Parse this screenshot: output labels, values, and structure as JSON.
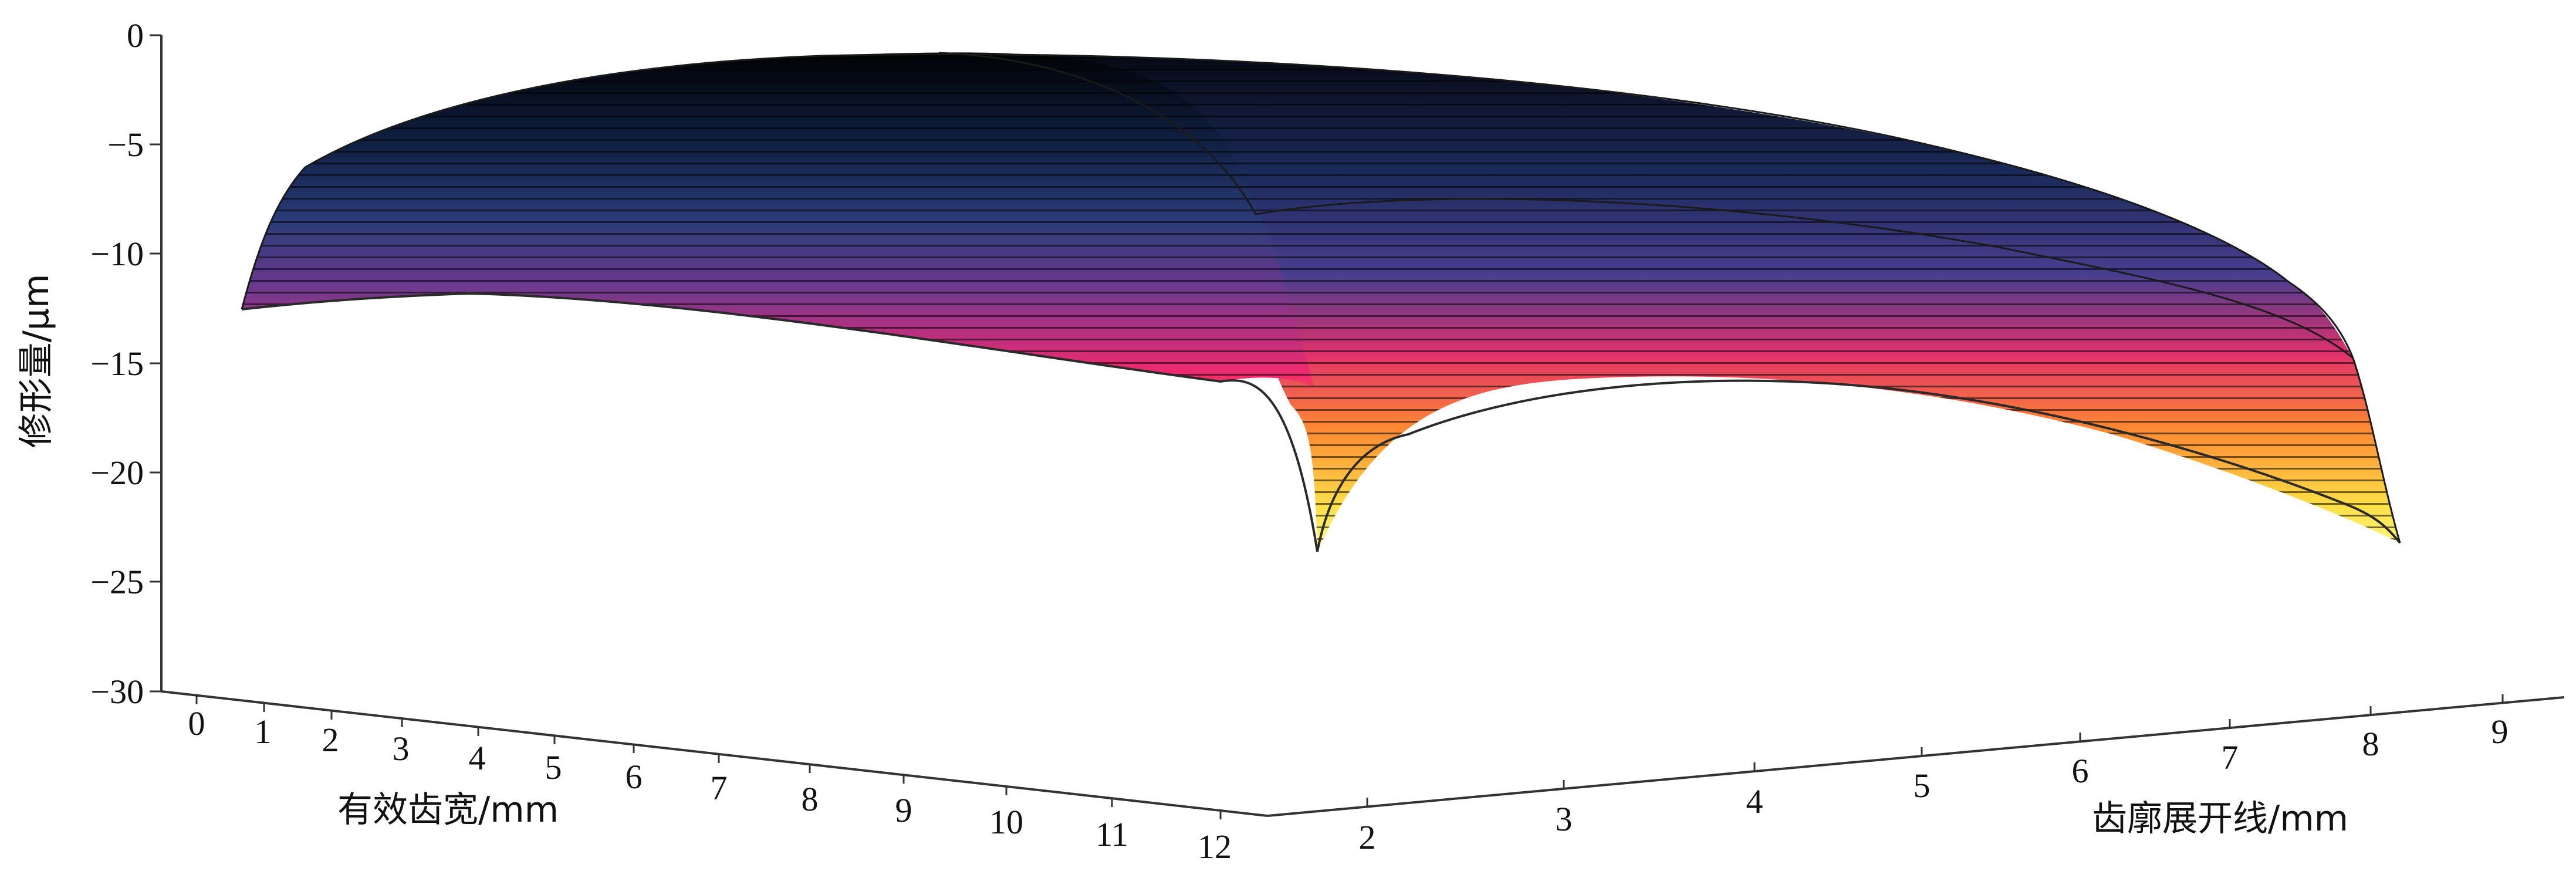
{
  "chart_data": {
    "type": "surface",
    "title": "",
    "zlabel": "修形量/μm",
    "xlabel": "有效齿宽/mm",
    "ylabel": "齿廓展开线/mm",
    "z_ticks": [
      "0",
      "−5",
      "−10",
      "−15",
      "−20",
      "−25",
      "−30"
    ],
    "zlim": [
      -30,
      0
    ],
    "x_ticks": [
      "0",
      "1",
      "2",
      "3",
      "4",
      "5",
      "6",
      "7",
      "8",
      "9",
      "10",
      "11",
      "12"
    ],
    "xlim": [
      0,
      12
    ],
    "y_ticks": [
      "2",
      "3",
      "4",
      "5",
      "6",
      "7",
      "8",
      "9"
    ],
    "ylim": [
      2,
      9
    ],
    "colormap": [
      "#000000",
      "#1a2a5a",
      "#3b3f8a",
      "#8a2f8a",
      "#e02a7a",
      "#ff6a3a",
      "#ffd230",
      "#ffff7a"
    ],
    "surface_edges": {
      "front_edge_x": [
        0,
        2,
        4,
        6,
        8,
        10,
        12
      ],
      "front_edge_z": [
        -12.5,
        -12,
        -12.2,
        -13,
        -14.5,
        -16.5,
        -24
      ],
      "right_edge_y": [
        2,
        3,
        4,
        5,
        6,
        7,
        8,
        9
      ],
      "right_edge_z": [
        -24,
        -18,
        -16.5,
        -16,
        -16.5,
        -17.5,
        -19,
        -23
      ],
      "ridge_min_z": -0.5
    }
  }
}
